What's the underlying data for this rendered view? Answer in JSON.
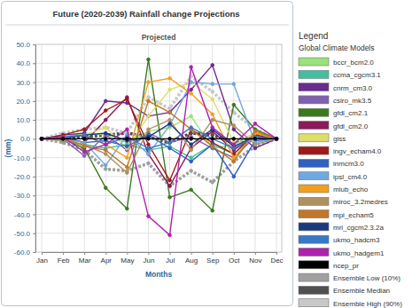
{
  "chart_data": {
    "type": "line",
    "title": "Future (2020-2039) Rainfall change Projections",
    "subtitle": "Projected",
    "x_label": "Months",
    "y_label": "(mm)",
    "legend_title": "Legend",
    "legend_subtitle": "Global Climate Models",
    "legend": "right",
    "grid": true,
    "marker": "circle",
    "categories": [
      "Jan",
      "Feb",
      "Mar",
      "Apr",
      "May",
      "Jun",
      "Jul",
      "Aug",
      "Sep",
      "Oct",
      "Nov",
      "Dec"
    ],
    "ylim": [
      -60,
      50
    ],
    "yticks": [
      {
        "value": -60,
        "label": "-60.0"
      },
      {
        "value": -50,
        "label": "-50.0"
      },
      {
        "value": -40,
        "label": "-40.0"
      },
      {
        "value": -30,
        "label": "-30.0"
      },
      {
        "value": -20,
        "label": "-20.0"
      },
      {
        "value": -10,
        "label": "-10.0"
      },
      {
        "value": 0,
        "label": "0.0"
      },
      {
        "value": 10,
        "label": "10.0"
      },
      {
        "value": 20,
        "label": "20.0"
      },
      {
        "value": 30,
        "label": "30.0"
      },
      {
        "value": 40,
        "label": "40.0"
      },
      {
        "value": 50,
        "label": "50.0"
      }
    ],
    "series": [
      {
        "name": "bccr_bcm2.0",
        "color": "#9be27a",
        "values": [
          0,
          1,
          3,
          2,
          -2,
          4,
          6,
          12,
          -5,
          -3,
          2,
          0
        ]
      },
      {
        "name": "ccma_cgcm3.1",
        "color": "#40c0a0",
        "values": [
          0,
          -1,
          -3,
          -5,
          -3,
          -6,
          -4,
          -10,
          -3,
          -8,
          2,
          0
        ]
      },
      {
        "name": "cnrm_cm3.0",
        "color": "#6a2c91",
        "values": [
          0,
          2,
          3,
          20,
          19,
          12,
          14,
          26,
          39,
          5,
          -5,
          0
        ]
      },
      {
        "name": "csiro_mk3.5",
        "color": "#8060b0",
        "values": [
          0,
          0,
          -9,
          2,
          -6,
          3,
          -2,
          1,
          -5,
          -10,
          1,
          0
        ]
      },
      {
        "name": "gfdl_cm2.1",
        "color": "#3a7a1e",
        "values": [
          0,
          0,
          -5,
          -26,
          -37,
          42,
          -31,
          -27,
          -38,
          18,
          5,
          0
        ]
      },
      {
        "name": "gfdl_cm2.0",
        "color": "#8b1a5a",
        "values": [
          0,
          1,
          -2,
          10,
          22,
          -8,
          -25,
          -5,
          4,
          -6,
          2,
          0
        ]
      },
      {
        "name": "giss",
        "color": "#dede6a",
        "values": [
          0,
          1,
          2,
          6,
          -5,
          12,
          26,
          30,
          21,
          -2,
          3,
          0
        ]
      },
      {
        "name": "ingv_echam4.0",
        "color": "#a01818",
        "values": [
          0,
          2,
          5,
          15,
          21,
          -3,
          -22,
          5,
          -2,
          -8,
          3,
          0
        ]
      },
      {
        "name": "inmcm3.0",
        "color": "#3060c0",
        "values": [
          0,
          1,
          -2,
          -1,
          -4,
          2,
          -5,
          -12,
          -3,
          -20,
          -1,
          0
        ]
      },
      {
        "name": "ipsl_cm4.0",
        "color": "#70a8e0",
        "values": [
          0,
          0,
          -2,
          -14,
          2,
          -8,
          7,
          30,
          29,
          29,
          -2,
          0
        ]
      },
      {
        "name": "miub_echo",
        "color": "#f0a020",
        "values": [
          0,
          1,
          2,
          -3,
          -10,
          30,
          32,
          24,
          13,
          -10,
          3,
          0
        ]
      },
      {
        "name": "miroc_3.2medres",
        "color": "#b09060",
        "values": [
          0,
          -1,
          -3,
          -8,
          -18,
          5,
          10,
          -6,
          10,
          7,
          -3,
          0
        ]
      },
      {
        "name": "mpi_echam5",
        "color": "#c07828",
        "values": [
          0,
          1,
          -4,
          -6,
          -15,
          20,
          14,
          5,
          -4,
          -12,
          4,
          0
        ]
      },
      {
        "name": "mri_cgcm2.3.2a",
        "color": "#1a3a80",
        "values": [
          0,
          0,
          2,
          3,
          -1,
          1,
          8,
          -3,
          5,
          -4,
          1,
          0
        ]
      },
      {
        "name": "ukmo_hadcm3",
        "color": "#3878c8",
        "values": [
          0,
          1,
          2,
          -3,
          1,
          -5,
          -2,
          6,
          0,
          -5,
          1,
          0
        ]
      },
      {
        "name": "ukmo_hadgem1",
        "color": "#b020b0",
        "values": [
          0,
          1,
          -7,
          -3,
          5,
          -41,
          -51,
          38,
          6,
          -3,
          8,
          0
        ]
      },
      {
        "name": "ncep_pr",
        "color": "#000000",
        "values": [
          0,
          0,
          0,
          0,
          0,
          0,
          0,
          0,
          0,
          0,
          0,
          0
        ]
      },
      {
        "name": "Ensemble Low (10%)",
        "color": "#a0a0a0",
        "line_style": "dotted",
        "values": [
          0,
          -2,
          -6,
          -16,
          -17,
          -13,
          -25,
          -17,
          -23,
          -12,
          -4,
          0
        ]
      },
      {
        "name": "Ensemble Median",
        "color": "#505050",
        "line_style": "dotted",
        "values": [
          0,
          0,
          1,
          2,
          3,
          1,
          -2,
          3,
          2,
          -2,
          1,
          0
        ]
      },
      {
        "name": "Ensemble High (90%)",
        "color": "#c8c8c8",
        "line_style": "dotted",
        "values": [
          0,
          3,
          5,
          6,
          3,
          22,
          16,
          33,
          25,
          14,
          5,
          0
        ]
      }
    ]
  }
}
